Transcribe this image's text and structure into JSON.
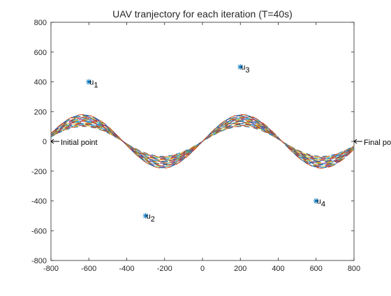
{
  "chart_data": {
    "type": "line",
    "title": "UAV tranjectory for each iteration (T=40s)",
    "xlabel": "",
    "ylabel": "",
    "xlim": [
      -800,
      800
    ],
    "ylim": [
      -800,
      800
    ],
    "xticks": [
      -800,
      -600,
      -400,
      -200,
      0,
      200,
      400,
      600,
      800
    ],
    "yticks": [
      -800,
      -600,
      -400,
      -200,
      0,
      200,
      400,
      600,
      800
    ],
    "grid": false,
    "trajectory": {
      "x_start": -800,
      "x_end": 800,
      "amplitude_min": 100,
      "amplitude_max": 180,
      "iterations": 30,
      "shape": "sine",
      "colors": [
        "#0072BD",
        "#D95319",
        "#EDB120",
        "#7E2F8E",
        "#77AC30",
        "#4DBEEE",
        "#A2142F"
      ]
    },
    "users": [
      {
        "name": "u",
        "sub": "1",
        "x": -600,
        "y": 400
      },
      {
        "name": "u",
        "sub": "2",
        "x": -300,
        "y": -500
      },
      {
        "name": "u",
        "sub": "3",
        "x": 200,
        "y": 500
      },
      {
        "name": "u",
        "sub": "4",
        "x": 600,
        "y": -400
      }
    ],
    "annotations": [
      {
        "text": "Initial point",
        "x": -800,
        "y": 0
      },
      {
        "text": "Final point",
        "x": 800,
        "y": 0
      }
    ],
    "marker_color": "#000000",
    "user_marker_color": "#0072BD"
  }
}
